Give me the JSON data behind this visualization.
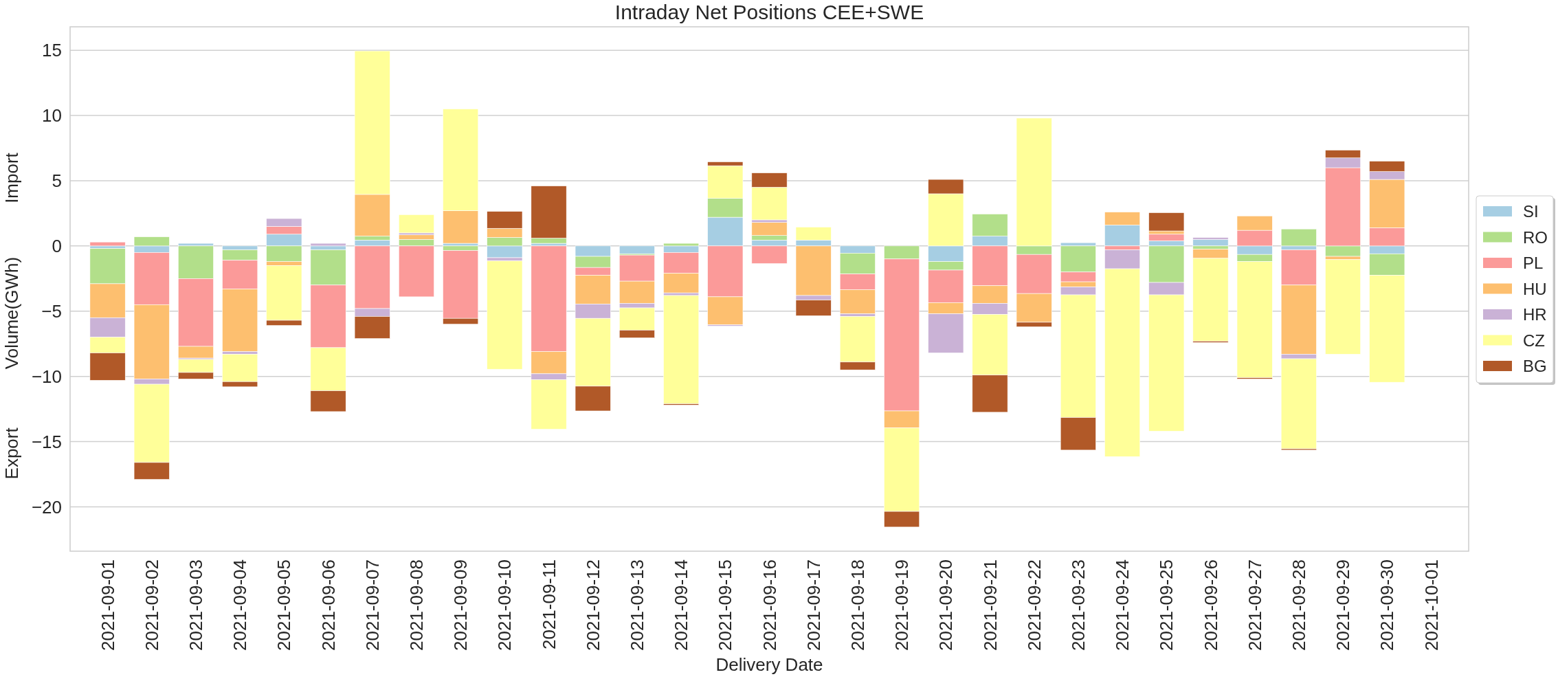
{
  "chart_data": {
    "type": "bar",
    "stacked": true,
    "title": "Intraday Net Positions CEE+SWE",
    "xlabel": "Delivery Date",
    "ylabel": "Volume(GWh)",
    "annotations": [
      "Import",
      "Export"
    ],
    "categories": [
      "2021-09-01",
      "2021-09-02",
      "2021-09-03",
      "2021-09-04",
      "2021-09-05",
      "2021-09-06",
      "2021-09-07",
      "2021-09-08",
      "2021-09-09",
      "2021-09-10",
      "2021-09-11",
      "2021-09-12",
      "2021-09-13",
      "2021-09-14",
      "2021-09-15",
      "2021-09-16",
      "2021-09-17",
      "2021-09-18",
      "2021-09-19",
      "2021-09-20",
      "2021-09-21",
      "2021-09-22",
      "2021-09-23",
      "2021-09-24",
      "2021-09-25",
      "2021-09-26",
      "2021-09-27",
      "2021-09-28",
      "2021-09-29",
      "2021-09-30",
      "2021-10-01"
    ],
    "series": [
      {
        "name": "SI",
        "color": "#a6cee3",
        "values": [
          -0.2,
          -0.5,
          0.2,
          -0.3,
          0.9,
          -0.3,
          0.45,
          0,
          0.2,
          -0.9,
          0.2,
          -0.8,
          -0.6,
          -0.5,
          2.2,
          0.45,
          0.45,
          -0.55,
          0,
          -1.2,
          0.75,
          0,
          0.25,
          1.6,
          0.4,
          0.5,
          -0.65,
          -0.3,
          0,
          -0.6,
          null
        ]
      },
      {
        "name": "RO",
        "color": "#b2df8a",
        "values": [
          -2.7,
          0.7,
          -2.5,
          -0.8,
          -1.2,
          -2.7,
          0.3,
          0.5,
          -0.35,
          0.65,
          0.4,
          -0.85,
          -0.1,
          0.2,
          1.45,
          0.35,
          0,
          -1.6,
          -1.0,
          -0.65,
          1.7,
          -0.65,
          -2.0,
          0,
          -2.8,
          -0.25,
          -0.55,
          1.3,
          -0.8,
          -1.65,
          null
        ]
      },
      {
        "name": "PL",
        "color": "#fb9a99",
        "values": [
          0.3,
          -4.0,
          -5.2,
          -2.2,
          0.6,
          -4.8,
          -4.8,
          -3.9,
          -5.2,
          0,
          -8.1,
          -0.6,
          -2.0,
          -1.6,
          -3.9,
          -1.35,
          0,
          -1.2,
          -11.65,
          -2.5,
          -3.05,
          -3.0,
          -0.75,
          -0.3,
          0.5,
          0,
          1.2,
          -2.7,
          6.0,
          1.4,
          null
        ]
      },
      {
        "name": "HU",
        "color": "#fdbf6f",
        "values": [
          -2.6,
          -5.7,
          -0.9,
          -4.8,
          -0.3,
          0,
          3.2,
          0.35,
          2.5,
          0.7,
          -1.7,
          -2.2,
          -1.7,
          -1.5,
          -2.15,
          1.0,
          -3.8,
          -1.85,
          -1.3,
          -0.85,
          -1.35,
          -2.2,
          -0.4,
          1.0,
          0.25,
          -0.7,
          1.1,
          -5.3,
          -0.25,
          3.7,
          null
        ]
      },
      {
        "name": "HR",
        "color": "#cab2d6",
        "values": [
          -1.5,
          -0.4,
          -0.1,
          -0.2,
          0.6,
          0.2,
          -0.6,
          0.15,
          0,
          -0.25,
          -0.45,
          -1.1,
          -0.35,
          -0.2,
          -0.1,
          0.2,
          -0.35,
          -0.2,
          0,
          -3.0,
          -0.85,
          0,
          -0.6,
          -1.45,
          -0.95,
          0.15,
          0,
          -0.35,
          0.75,
          0.6,
          null
        ]
      },
      {
        "name": "CZ",
        "color": "#ffff99",
        "values": [
          -1.2,
          -6.0,
          -1.0,
          -2.1,
          -4.2,
          -3.3,
          11.0,
          1.4,
          7.8,
          -8.3,
          -3.8,
          -5.2,
          -1.7,
          -8.3,
          2.5,
          2.5,
          1.0,
          -3.5,
          -6.4,
          4.0,
          -4.65,
          9.8,
          -9.4,
          -14.4,
          -10.45,
          -6.35,
          -8.9,
          -6.9,
          -7.25,
          -8.2,
          null
        ]
      },
      {
        "name": "BG",
        "color": "#b15928",
        "values": [
          -2.1,
          -1.3,
          -0.5,
          -0.4,
          -0.4,
          -1.6,
          -1.7,
          0,
          -0.45,
          1.3,
          4.0,
          -1.9,
          -0.6,
          -0.1,
          0.3,
          1.1,
          -1.2,
          -0.6,
          -1.2,
          1.1,
          -2.85,
          -0.35,
          -2.5,
          0,
          1.4,
          -0.1,
          -0.1,
          -0.1,
          0.6,
          0.8,
          null
        ]
      }
    ],
    "ylim": [
      -23.4,
      16.8
    ],
    "yticks": [
      {
        "value": -20,
        "label": "−20"
      },
      {
        "value": -15,
        "label": "−15"
      },
      {
        "value": -10,
        "label": "−10"
      },
      {
        "value": -5,
        "label": "−5"
      },
      0,
      5,
      10,
      15
    ],
    "grid": "y",
    "legend": "right"
  }
}
